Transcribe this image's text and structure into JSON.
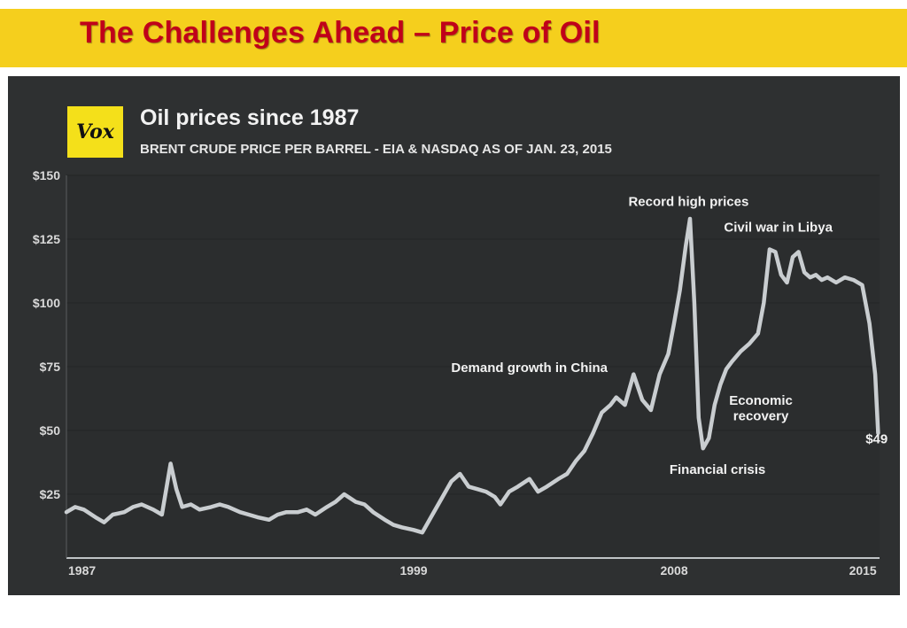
{
  "slide": {
    "title": "The Challenges Ahead – Price of Oil"
  },
  "logo": {
    "text": "Vox"
  },
  "colors": {
    "banner": "#f5cf1d",
    "title_text": "#c0001a",
    "panel": "#2e3031",
    "line": "#c9cdd0",
    "grid": "#262829"
  },
  "chart_data": {
    "type": "line",
    "title": "Oil prices since 1987",
    "subtitle": "BRENT CRUDE PRICE PER BARREL - EIA & NASDAQ AS OF JAN. 23, 2015",
    "xlabel": "",
    "ylabel": "",
    "xlim": [
      1987,
      2015.1
    ],
    "ylim": [
      0,
      150
    ],
    "y_ticks": [
      25,
      50,
      75,
      100,
      125,
      150
    ],
    "y_tick_labels": [
      "$25",
      "$50",
      "$75",
      "$100",
      "$125",
      "$150"
    ],
    "x_ticks": [
      1987,
      1999,
      2008,
      2015
    ],
    "x_tick_labels": [
      "1987",
      "1999",
      "2008",
      "2015"
    ],
    "grid": true,
    "series": [
      {
        "name": "Brent crude price per barrel",
        "x": [
          1987.0,
          1987.3,
          1987.6,
          1988.0,
          1988.3,
          1988.6,
          1989.0,
          1989.3,
          1989.6,
          1990.0,
          1990.3,
          1990.6,
          1990.8,
          1991.0,
          1991.3,
          1991.6,
          1992.0,
          1992.3,
          1992.6,
          1993.0,
          1993.3,
          1993.6,
          1994.0,
          1994.3,
          1994.6,
          1995.0,
          1995.3,
          1995.6,
          1996.0,
          1996.3,
          1996.6,
          1997.0,
          1997.3,
          1997.6,
          1998.0,
          1998.3,
          1998.6,
          1999.0,
          1999.3,
          1999.6,
          2000.0,
          2000.3,
          2000.6,
          2000.9,
          2001.2,
          2001.5,
          2001.8,
          2002.0,
          2002.3,
          2002.6,
          2003.0,
          2003.3,
          2003.6,
          2004.0,
          2004.3,
          2004.6,
          2004.9,
          2005.2,
          2005.5,
          2005.8,
          2006.0,
          2006.3,
          2006.6,
          2006.9,
          2007.2,
          2007.5,
          2007.8,
          2008.0,
          2008.2,
          2008.4,
          2008.55,
          2008.7,
          2008.85,
          2009.0,
          2009.2,
          2009.4,
          2009.6,
          2009.8,
          2010.0,
          2010.3,
          2010.6,
          2010.9,
          2011.1,
          2011.3,
          2011.5,
          2011.7,
          2011.9,
          2012.1,
          2012.3,
          2012.5,
          2012.7,
          2012.9,
          2013.1,
          2013.3,
          2013.6,
          2013.9,
          2014.2,
          2014.5,
          2014.75,
          2014.95,
          2015.05
        ],
        "values": [
          18,
          20,
          19,
          16,
          14,
          17,
          18,
          20,
          21,
          19,
          17,
          37,
          27,
          20,
          21,
          19,
          20,
          21,
          20,
          18,
          17,
          16,
          15,
          17,
          18,
          18,
          19,
          17,
          20,
          22,
          25,
          22,
          21,
          18,
          15,
          13,
          12,
          11,
          10,
          16,
          24,
          30,
          33,
          28,
          27,
          26,
          24,
          21,
          26,
          28,
          31,
          26,
          28,
          31,
          33,
          38,
          42,
          49,
          57,
          60,
          63,
          60,
          72,
          62,
          58,
          72,
          80,
          92,
          105,
          122,
          133,
          100,
          55,
          43,
          47,
          60,
          68,
          74,
          77,
          81,
          84,
          88,
          100,
          121,
          120,
          111,
          108,
          118,
          120,
          112,
          110,
          111,
          109,
          110,
          108,
          110,
          109,
          107,
          92,
          72,
          49
        ]
      }
    ],
    "annotations": [
      {
        "text": "Record high prices",
        "x": 2008.5,
        "y": 138
      },
      {
        "text": "Civil war in Libya",
        "x": 2011.6,
        "y": 128
      },
      {
        "text": "Demand growth in China",
        "x": 2003.0,
        "y": 73
      },
      {
        "text": "Economic",
        "x": 2011.0,
        "y": 60
      },
      {
        "text": "recovery",
        "x": 2011.0,
        "y": 54
      },
      {
        "text": "Financial crisis",
        "x": 2009.5,
        "y": 33
      },
      {
        "text": "$49",
        "x": 2015.0,
        "y": 45
      }
    ]
  }
}
